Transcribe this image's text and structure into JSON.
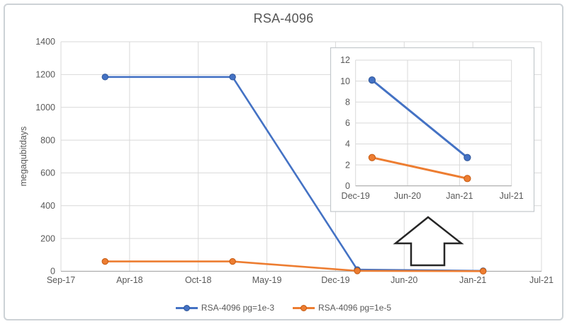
{
  "figure": {
    "title": "RSA-4096",
    "y_axis_label": "megaqubitdays"
  },
  "legend": {
    "position": "bottom-center",
    "items": [
      {
        "label": "RSA-4096 pg=1e-3",
        "color": "#4472C4",
        "edge_color": "#2F5597",
        "marker": "circle-on-line"
      },
      {
        "label": "RSA-4096 pg=1e-5",
        "color": "#ED7D31",
        "edge_color": "#C55A11",
        "marker": "circle-on-line"
      }
    ]
  },
  "annotations": {
    "zoom_arrow": {
      "shape": "block-arrow-up",
      "outline_color": "#262626",
      "meaning": "inset magnifies the near-zero region from Dec-19 onward"
    }
  },
  "colors": {
    "gridline": "#D9D9D9",
    "axis_line": "#ADADAD",
    "tick_label": "#595959",
    "title": "#555555",
    "inset_border": "#C3C8CC",
    "figure_border": "#CDD2D6",
    "background": "#FFFFFF"
  },
  "chart_data": [
    {
      "id": "main-chart",
      "type": "line",
      "title": "RSA-4096",
      "xlabel": "",
      "ylabel": "megaqubitdays",
      "x_tick_labels": [
        "Sep-17",
        "Apr-18",
        "Oct-18",
        "May-19",
        "Dec-19",
        "Jun-20",
        "Jan-21",
        "Jul-21"
      ],
      "x_tick_months": [
        0,
        7,
        13,
        20,
        27,
        33,
        40,
        46
      ],
      "y_ticks": [
        0,
        200,
        400,
        600,
        800,
        1000,
        1200,
        1400
      ],
      "ylim": [
        0,
        1400
      ],
      "grid": true,
      "legend_position": "bottom",
      "series": [
        {
          "name": "RSA-4096 pg=1e-3",
          "color": "#4472C4",
          "marker_edge": "#2F5597",
          "points": [
            {
              "date": "Jan-18",
              "month": 4.5,
              "value": 1185
            },
            {
              "date": "Jan-19",
              "month": 16.5,
              "value": 1185
            },
            {
              "date": "Feb-20",
              "month": 28.9,
              "value": 10.1
            },
            {
              "date": "Feb-21",
              "month": 40.9,
              "value": 2.7
            }
          ]
        },
        {
          "name": "RSA-4096 pg=1e-5",
          "color": "#ED7D31",
          "marker_edge": "#C55A11",
          "points": [
            {
              "date": "Jan-18",
              "month": 4.5,
              "value": 60
            },
            {
              "date": "Jan-19",
              "month": 16.5,
              "value": 60
            },
            {
              "date": "Feb-20",
              "month": 28.9,
              "value": 2.7
            },
            {
              "date": "Feb-21",
              "month": 40.9,
              "value": 0.7
            }
          ]
        }
      ]
    },
    {
      "id": "inset-chart",
      "type": "line",
      "title": "",
      "description": "zoomed inset of main chart for Dec-19 to Jul-21, y range 0-12",
      "x_tick_labels": [
        "Dec-19",
        "Jun-20",
        "Jan-21",
        "Jul-21"
      ],
      "x_tick_months": [
        27,
        33,
        40,
        46
      ],
      "y_ticks": [
        0,
        2,
        4,
        6,
        8,
        10,
        12
      ],
      "ylim": [
        0,
        12
      ],
      "grid": true,
      "series": [
        {
          "name": "RSA-4096 pg=1e-3",
          "color": "#4472C4",
          "marker_edge": "#2F5597",
          "points": [
            {
              "date": "Feb-20",
              "month": 28.9,
              "value": 10.1
            },
            {
              "date": "Feb-21",
              "month": 40.9,
              "value": 2.7
            }
          ]
        },
        {
          "name": "RSA-4096 pg=1e-5",
          "color": "#ED7D31",
          "marker_edge": "#C55A11",
          "points": [
            {
              "date": "Feb-20",
              "month": 28.9,
              "value": 2.7
            },
            {
              "date": "Feb-21",
              "month": 40.9,
              "value": 0.7
            }
          ]
        }
      ]
    }
  ]
}
